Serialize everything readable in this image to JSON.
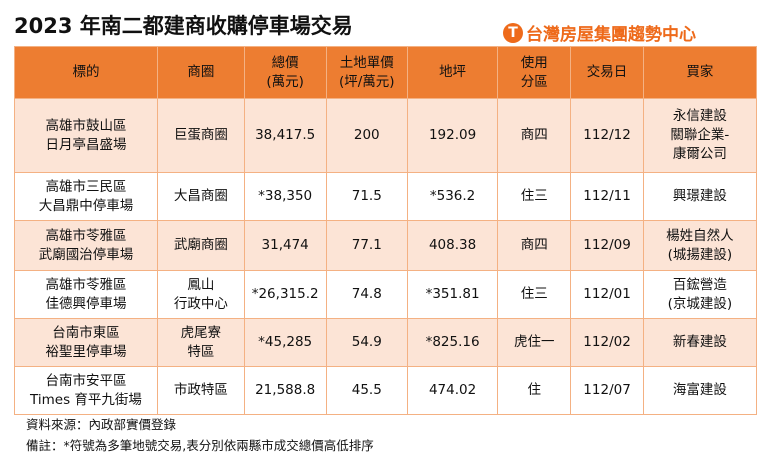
{
  "title": "2023 年南二都建商收購停車場交易",
  "logo_text": "台灣房屋集團趨勢中心",
  "headers": [
    [
      "標的"
    ],
    [
      "商圈"
    ],
    [
      "總價",
      "(萬元)"
    ],
    [
      "土地單價",
      "(坪/萬元)"
    ],
    [
      "地坪"
    ],
    [
      "使用",
      "分區"
    ],
    [
      "交易日"
    ],
    [
      "買家"
    ]
  ],
  "rows": [
    [
      [
        "高雄市鼓山區",
        "日月亭昌盛場"
      ],
      [
        "巨蛋商圈"
      ],
      [
        "38,417.5"
      ],
      [
        "200"
      ],
      [
        "192.09"
      ],
      [
        "商四"
      ],
      [
        "112/12"
      ],
      [
        "永信建設",
        "關聯企業-",
        "康爾公司"
      ]
    ],
    [
      [
        "高雄市三民區",
        "大昌鼎中停車場"
      ],
      [
        "大昌商圈"
      ],
      [
        "*38,350"
      ],
      [
        "71.5"
      ],
      [
        "*536.2"
      ],
      [
        "住三"
      ],
      [
        "112/11"
      ],
      [
        "興璟建設"
      ]
    ],
    [
      [
        "高雄市苓雅區",
        "武廟國治停車場"
      ],
      [
        "武廟商圈"
      ],
      [
        "31,474"
      ],
      [
        "77.1"
      ],
      [
        "408.38"
      ],
      [
        "商四"
      ],
      [
        "112/09"
      ],
      [
        "楊姓自然人",
        "(城揚建設)"
      ]
    ],
    [
      [
        "高雄市苓雅區",
        "佳德興停車場"
      ],
      [
        "鳳山",
        "行政中心"
      ],
      [
        "*26,315.2"
      ],
      [
        "74.8"
      ],
      [
        "*351.81"
      ],
      [
        "住三"
      ],
      [
        "112/01"
      ],
      [
        "百鋐營造",
        "(京城建設)"
      ]
    ],
    [
      [
        "台南市東區",
        "裕聖里停車場"
      ],
      [
        "虎尾寮",
        "特區"
      ],
      [
        "*45,285"
      ],
      [
        "54.9"
      ],
      [
        "*825.16"
      ],
      [
        "虎住一"
      ],
      [
        "112/02"
      ],
      [
        "新春建設"
      ]
    ],
    [
      [
        "台南市安平區",
        "Times 育平九街場"
      ],
      [
        "市政特區"
      ],
      [
        "21,588.8"
      ],
      [
        "45.5"
      ],
      [
        "474.02"
      ],
      [
        "住"
      ],
      [
        "112/07"
      ],
      [
        "海富建設"
      ]
    ]
  ],
  "notes": [
    "資料來源：內政部實價登錄",
    "備註：*符號為多筆地號交易,表分別依兩縣市成交總價高低排序"
  ],
  "colors": {
    "header": "#ed7d31",
    "row_alt": "#fce4d6",
    "border": "#f4b183",
    "logo": "#ee6a1a"
  }
}
